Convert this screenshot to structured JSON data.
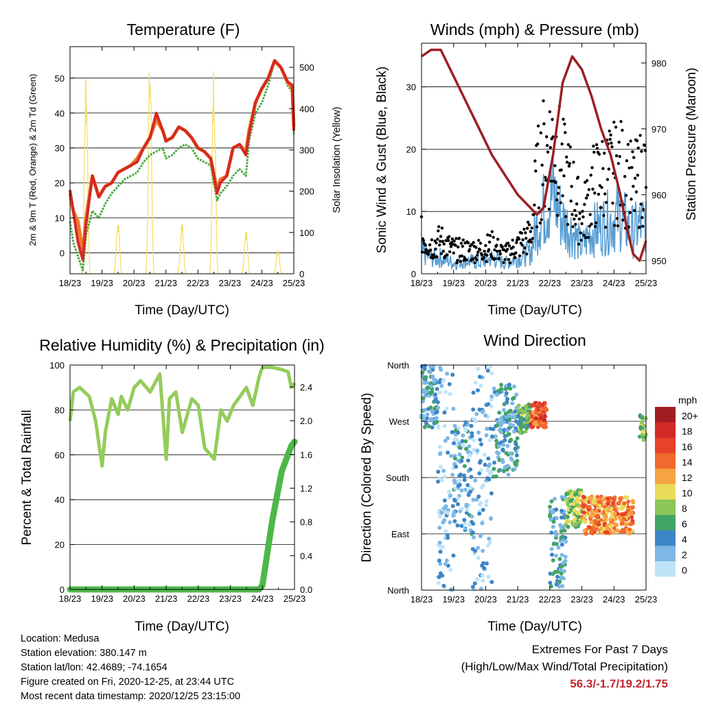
{
  "panels": {
    "temperature": {
      "title": "Temperature (F)",
      "ylabel_left": "2m & 9m T (Red, Orange) & 2m Td (Green)",
      "ylabel_right": "Solar Insolation (Yellow)",
      "xlabel": "Time (Day/UTC)"
    },
    "winds": {
      "title": "Winds (mph) & Pressure (mb)",
      "ylabel_left": "Sonic Wind & Gust (Blue, Black)",
      "ylabel_right": "Station Pressure (Maroon)",
      "xlabel": "Time (Day/UTC)"
    },
    "humidity": {
      "title": "Relative Humidity (%) & Precipitation (in)",
      "ylabel_left": "Percent & Total Rainfall",
      "xlabel": "Time (Day/UTC)"
    },
    "direction": {
      "title": "Wind Direction",
      "ylabel_left": "Direction (Colored By Speed)",
      "xlabel": "Time (Day/UTC)",
      "legend_title": "mph"
    }
  },
  "info": {
    "location": "Location: Medusa",
    "elevation": "Station elevation: 380.147 m",
    "latlon": "Station lat/lon: 42.4689; -74.1654",
    "created": "Figure created on Fri, 2020-12-25, at 23:44 UTC",
    "timestamp": "Most recent data timestamp: 2020/12/25 23:15:00"
  },
  "extremes": {
    "title": "Extremes For Past 7 Days",
    "subtitle": "(High/Low/Max Wind/Total Precipitation)",
    "values": "56.3/-1.7/19.2/1.75"
  },
  "colors": {
    "temp_2m": "#d42a22",
    "temp_9m": "#f07a2c",
    "dewpoint": "#4aaa44",
    "solar": "#f5de6a",
    "wind": "#5a9fd4",
    "gust": "#000000",
    "pressure": "#9c1f22",
    "rh": "#94cc5a",
    "precip": "#4db848"
  },
  "chart_data": [
    {
      "type": "line",
      "title": "Temperature (F)",
      "xlabel": "Time (Day/UTC)",
      "ylabel": "2m & 9m T (Red, Orange) & 2m Td (Green)",
      "y2label": "Solar Insolation (Yellow)",
      "x_ticks": [
        "18/23",
        "19/23",
        "20/23",
        "21/23",
        "22/23",
        "23/23",
        "24/23",
        "25/23"
      ],
      "ylim": [
        -6,
        59
      ],
      "y_ticks": [
        0,
        10,
        20,
        30,
        40,
        50
      ],
      "y2lim": [
        0,
        550
      ],
      "y2_ticks": [
        0,
        100,
        200,
        300,
        400,
        500
      ],
      "grid": true,
      "x": [
        0,
        0.1,
        0.25,
        0.4,
        0.5,
        0.7,
        0.9,
        1.1,
        1.3,
        1.5,
        1.7,
        1.9,
        2.1,
        2.3,
        2.5,
        2.7,
        2.9,
        3.0,
        3.2,
        3.4,
        3.6,
        3.8,
        4.0,
        4.2,
        4.4,
        4.6,
        4.7,
        4.9,
        5.1,
        5.3,
        5.5,
        5.6,
        5.8,
        6.0,
        6.2,
        6.4,
        6.6,
        6.8,
        6.95,
        7.0
      ],
      "series": [
        {
          "name": "2m T",
          "values": [
            18,
            12,
            3,
            -2,
            8,
            22,
            16,
            19,
            20,
            23,
            24,
            25,
            26,
            30,
            33,
            40,
            35,
            32,
            33,
            36,
            35,
            33,
            30,
            29,
            27,
            17,
            20,
            22,
            30,
            31,
            28,
            34,
            43,
            47,
            50,
            55,
            53,
            49,
            48,
            35
          ]
        },
        {
          "name": "9m T",
          "values": [
            17,
            12,
            9,
            0,
            10,
            22,
            16,
            19,
            20,
            23,
            24,
            25,
            27,
            30,
            33,
            38,
            35,
            32,
            33,
            36,
            35,
            33,
            30,
            29,
            27,
            18,
            21,
            22,
            30,
            31,
            29,
            35,
            43,
            47,
            50,
            55,
            53,
            49,
            47,
            36
          ]
        },
        {
          "name": "2m Td",
          "values": [
            9,
            3,
            -1,
            -5,
            5,
            12,
            10,
            14,
            17,
            19,
            21,
            22,
            23,
            26,
            28,
            29,
            30,
            27,
            28,
            30,
            31,
            30,
            27,
            26,
            25,
            15,
            17,
            19,
            22,
            24,
            22,
            32,
            40,
            43,
            48,
            55,
            53,
            48,
            46,
            34
          ]
        }
      ],
      "solar": {
        "day_x": [
          0.5,
          1.5,
          2.5,
          3.5,
          4.5,
          5.5,
          6.5
        ],
        "peak": [
          520,
          140,
          550,
          130,
          530,
          120,
          60
        ]
      }
    },
    {
      "type": "scatter",
      "title": "Winds (mph) & Pressure (mb)",
      "xlabel": "Time (Day/UTC)",
      "ylabel": "Sonic Wind & Gust (Blue, Black)",
      "y2label": "Station Pressure (Maroon)",
      "x_ticks": [
        "18/23",
        "19/23",
        "20/23",
        "21/23",
        "22/23",
        "23/23",
        "24/23",
        "25/23"
      ],
      "ylim": [
        0,
        37
      ],
      "y_ticks": [
        0,
        10,
        20,
        30
      ],
      "y2lim": [
        948,
        983
      ],
      "y2_ticks": [
        950,
        960,
        970,
        980
      ],
      "grid": true,
      "x": [
        0,
        0.3,
        0.6,
        1.0,
        1.4,
        1.8,
        2.2,
        2.6,
        3.0,
        3.4,
        3.6,
        3.8,
        4.1,
        4.4,
        4.7,
        5.0,
        5.3,
        5.6,
        5.9,
        6.2,
        6.4,
        6.6,
        6.8,
        7.0
      ],
      "series": [
        {
          "name": "Wind",
          "values": [
            4,
            3,
            3,
            2,
            2.5,
            2,
            3,
            2,
            3,
            4,
            9,
            12,
            15,
            10,
            8,
            5,
            8,
            9,
            10,
            11,
            9,
            8,
            9,
            10
          ]
        },
        {
          "name": "Gust",
          "values": [
            8,
            6,
            7,
            5,
            5,
            5,
            6,
            4,
            6,
            8,
            20,
            25,
            28,
            22,
            18,
            11,
            18,
            20,
            21,
            22,
            20,
            18,
            20,
            22
          ]
        },
        {
          "name": "Pressure",
          "values": [
            981,
            982,
            982,
            978,
            974,
            970,
            966,
            963,
            960,
            958,
            957,
            958,
            966,
            977,
            981,
            979,
            975,
            970,
            966,
            960,
            955,
            951,
            950,
            953
          ]
        }
      ]
    },
    {
      "type": "line",
      "title": "Relative Humidity (%) & Precipitation (in)",
      "xlabel": "Time (Day/UTC)",
      "ylabel": "Percent & Total Rainfall",
      "x_ticks": [
        "18/23",
        "19/23",
        "20/23",
        "21/23",
        "22/23",
        "23/23",
        "24/23",
        "25/23"
      ],
      "ylim": [
        0,
        100
      ],
      "y_ticks": [
        0,
        20,
        40,
        60,
        80,
        100
      ],
      "y2lim": [
        0,
        2.66
      ],
      "y2_ticks": [
        0.0,
        0.4,
        0.8,
        1.2,
        1.6,
        2.0,
        2.4
      ],
      "grid": true,
      "x": [
        0,
        0.1,
        0.3,
        0.6,
        0.8,
        1.0,
        1.1,
        1.3,
        1.5,
        1.6,
        1.8,
        2.0,
        2.2,
        2.5,
        2.8,
        3.0,
        3.1,
        3.3,
        3.5,
        3.8,
        4.0,
        4.2,
        4.5,
        4.7,
        4.9,
        5.1,
        5.3,
        5.5,
        5.7,
        5.9,
        6.0,
        6.3,
        6.6,
        6.8,
        6.9,
        7.0
      ],
      "series": [
        {
          "name": "RH",
          "values": [
            75,
            88,
            90,
            86,
            75,
            55,
            70,
            85,
            78,
            86,
            80,
            90,
            93,
            88,
            96,
            58,
            85,
            88,
            70,
            85,
            82,
            63,
            58,
            80,
            75,
            82,
            86,
            90,
            82,
            95,
            99,
            99,
            98,
            97,
            90,
            92
          ]
        },
        {
          "name": "Precipitation",
          "values": [
            0,
            0,
            0,
            0,
            0,
            0,
            0,
            0,
            0,
            0,
            0,
            0,
            0,
            0,
            0,
            0,
            0,
            0,
            0,
            0,
            0,
            0,
            0,
            0,
            0,
            0,
            0,
            0,
            0,
            0,
            0.05,
            0.8,
            1.4,
            1.6,
            1.7,
            1.75
          ]
        }
      ]
    },
    {
      "type": "scatter",
      "title": "Wind Direction",
      "xlabel": "Time (Day/UTC)",
      "ylabel": "Direction (Colored By Speed)",
      "x_ticks": [
        "18/23",
        "19/23",
        "20/23",
        "21/23",
        "22/23",
        "23/23",
        "24/23",
        "25/23"
      ],
      "y_ticks": [
        "North",
        "West",
        "South",
        "East",
        "North"
      ],
      "ylim": [
        360,
        0
      ],
      "grid": true,
      "colorbar": {
        "title": "mph",
        "labels": [
          "20+",
          "18",
          "16",
          "14",
          "12",
          "10",
          "8",
          "6",
          "4",
          "2",
          "0"
        ],
        "colors": [
          "#a01d20",
          "#d12a27",
          "#e8412c",
          "#f2692e",
          "#f6a343",
          "#e9dc5a",
          "#8cc65a",
          "#43a467",
          "#3d86c6",
          "#7db8e6",
          "#bfe3f7"
        ]
      },
      "clusters": [
        {
          "x": [
            0,
            0.5
          ],
          "dir": [
            260,
            360
          ],
          "speed": 4
        },
        {
          "x": [
            0.5,
            1.0
          ],
          "dir": [
            0,
            360
          ],
          "speed": 2
        },
        {
          "x": [
            1.0,
            1.6
          ],
          "dir": [
            90,
            270
          ],
          "speed": 3
        },
        {
          "x": [
            1.6,
            2.2
          ],
          "dir": [
            0,
            360
          ],
          "speed": 2
        },
        {
          "x": [
            2.2,
            3.0
          ],
          "dir": [
            180,
            330
          ],
          "speed": 4
        },
        {
          "x": [
            3.0,
            3.4
          ],
          "dir": [
            250,
            300
          ],
          "speed": 7
        },
        {
          "x": [
            3.4,
            3.9
          ],
          "dir": [
            260,
            300
          ],
          "speed": 15
        },
        {
          "x": [
            4.0,
            4.5
          ],
          "dir": [
            0,
            150
          ],
          "speed": 4
        },
        {
          "x": [
            4.5,
            5.0
          ],
          "dir": [
            100,
            160
          ],
          "speed": 8
        },
        {
          "x": [
            5.0,
            6.6
          ],
          "dir": [
            90,
            150
          ],
          "speed": 13
        },
        {
          "x": [
            6.8,
            7.0
          ],
          "dir": [
            240,
            280
          ],
          "speed": 7
        }
      ]
    }
  ]
}
